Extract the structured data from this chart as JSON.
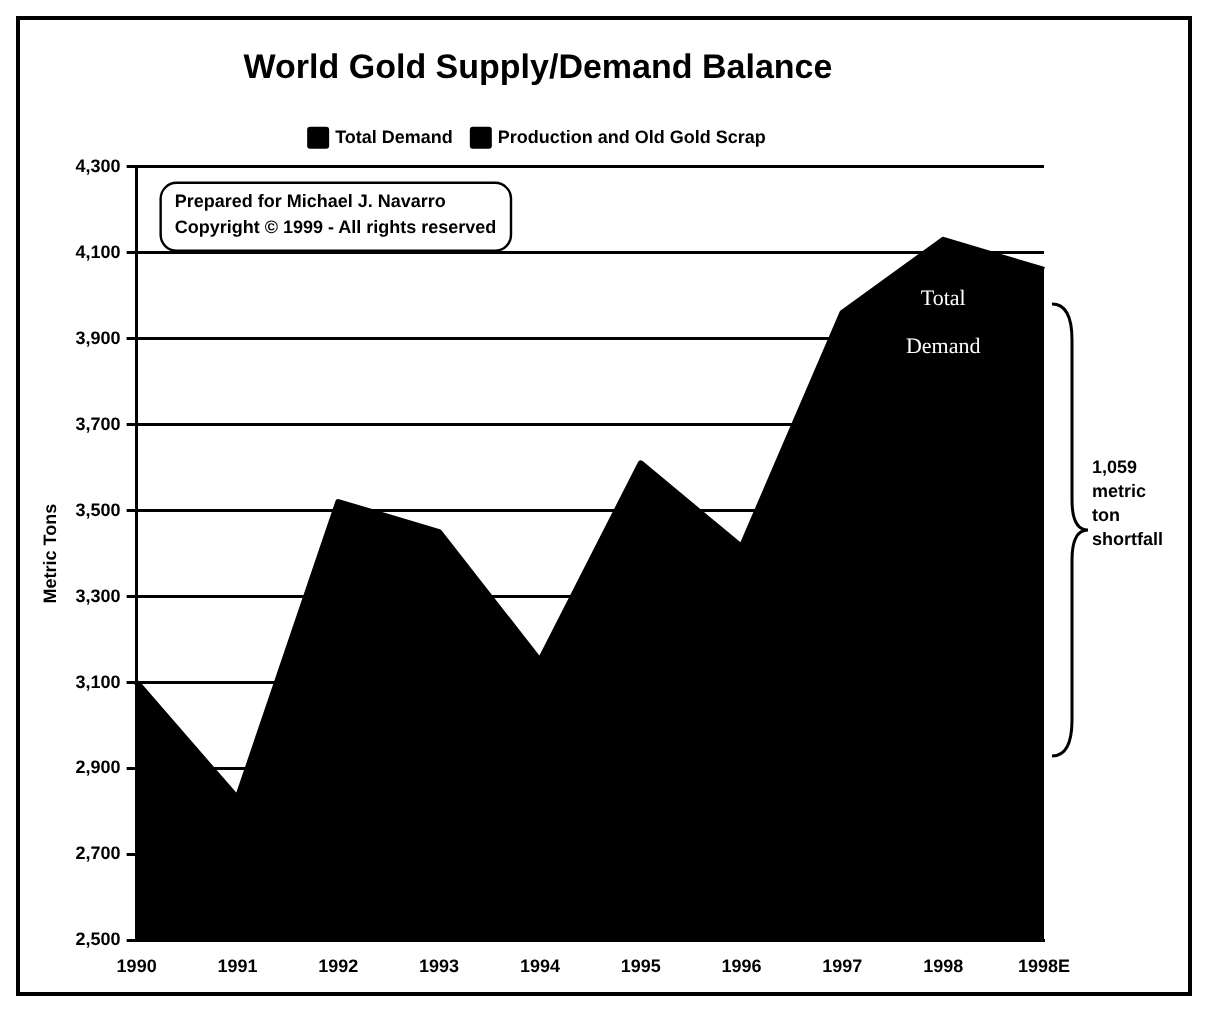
{
  "chart_data": {
    "type": "area",
    "title": "World Gold Supply/Demand Balance",
    "ylabel": "Metric Tons",
    "categories": [
      "1990",
      "1991",
      "1992",
      "1993",
      "1994",
      "1995",
      "1996",
      "1997",
      "1998",
      "1998E"
    ],
    "series": [
      {
        "name": "Total Demand",
        "color": "#000000",
        "values": [
          3100,
          2830,
          3520,
          3450,
          3150,
          3610,
          3415,
          3960,
          4130,
          4060
        ]
      },
      {
        "name": "Production and Old Gold Scrap",
        "color": "#000000",
        "values": [
          null,
          null,
          null,
          null,
          null,
          null,
          null,
          null,
          null,
          null
        ]
      }
    ],
    "ylim": [
      2500,
      4300
    ],
    "yticks": [
      {
        "value": 2500,
        "label": "2,500"
      },
      {
        "value": 2700,
        "label": "2,700"
      },
      {
        "value": 2900,
        "label": "2,900"
      },
      {
        "value": 3100,
        "label": "3,100"
      },
      {
        "value": 3300,
        "label": "3,300"
      },
      {
        "value": 3500,
        "label": "3,500"
      },
      {
        "value": 3700,
        "label": "3,700"
      },
      {
        "value": 3900,
        "label": "3,900"
      },
      {
        "value": 4100,
        "label": "4,100"
      },
      {
        "value": 4300,
        "label": "4,300"
      }
    ],
    "grid": "y",
    "legend": "top",
    "annotations": [
      "Prepared for Michael J. Navarro",
      "Copyright © 1999 - All rights reserved",
      "Total Demand",
      "1,059 metric ton shortfall"
    ]
  }
}
